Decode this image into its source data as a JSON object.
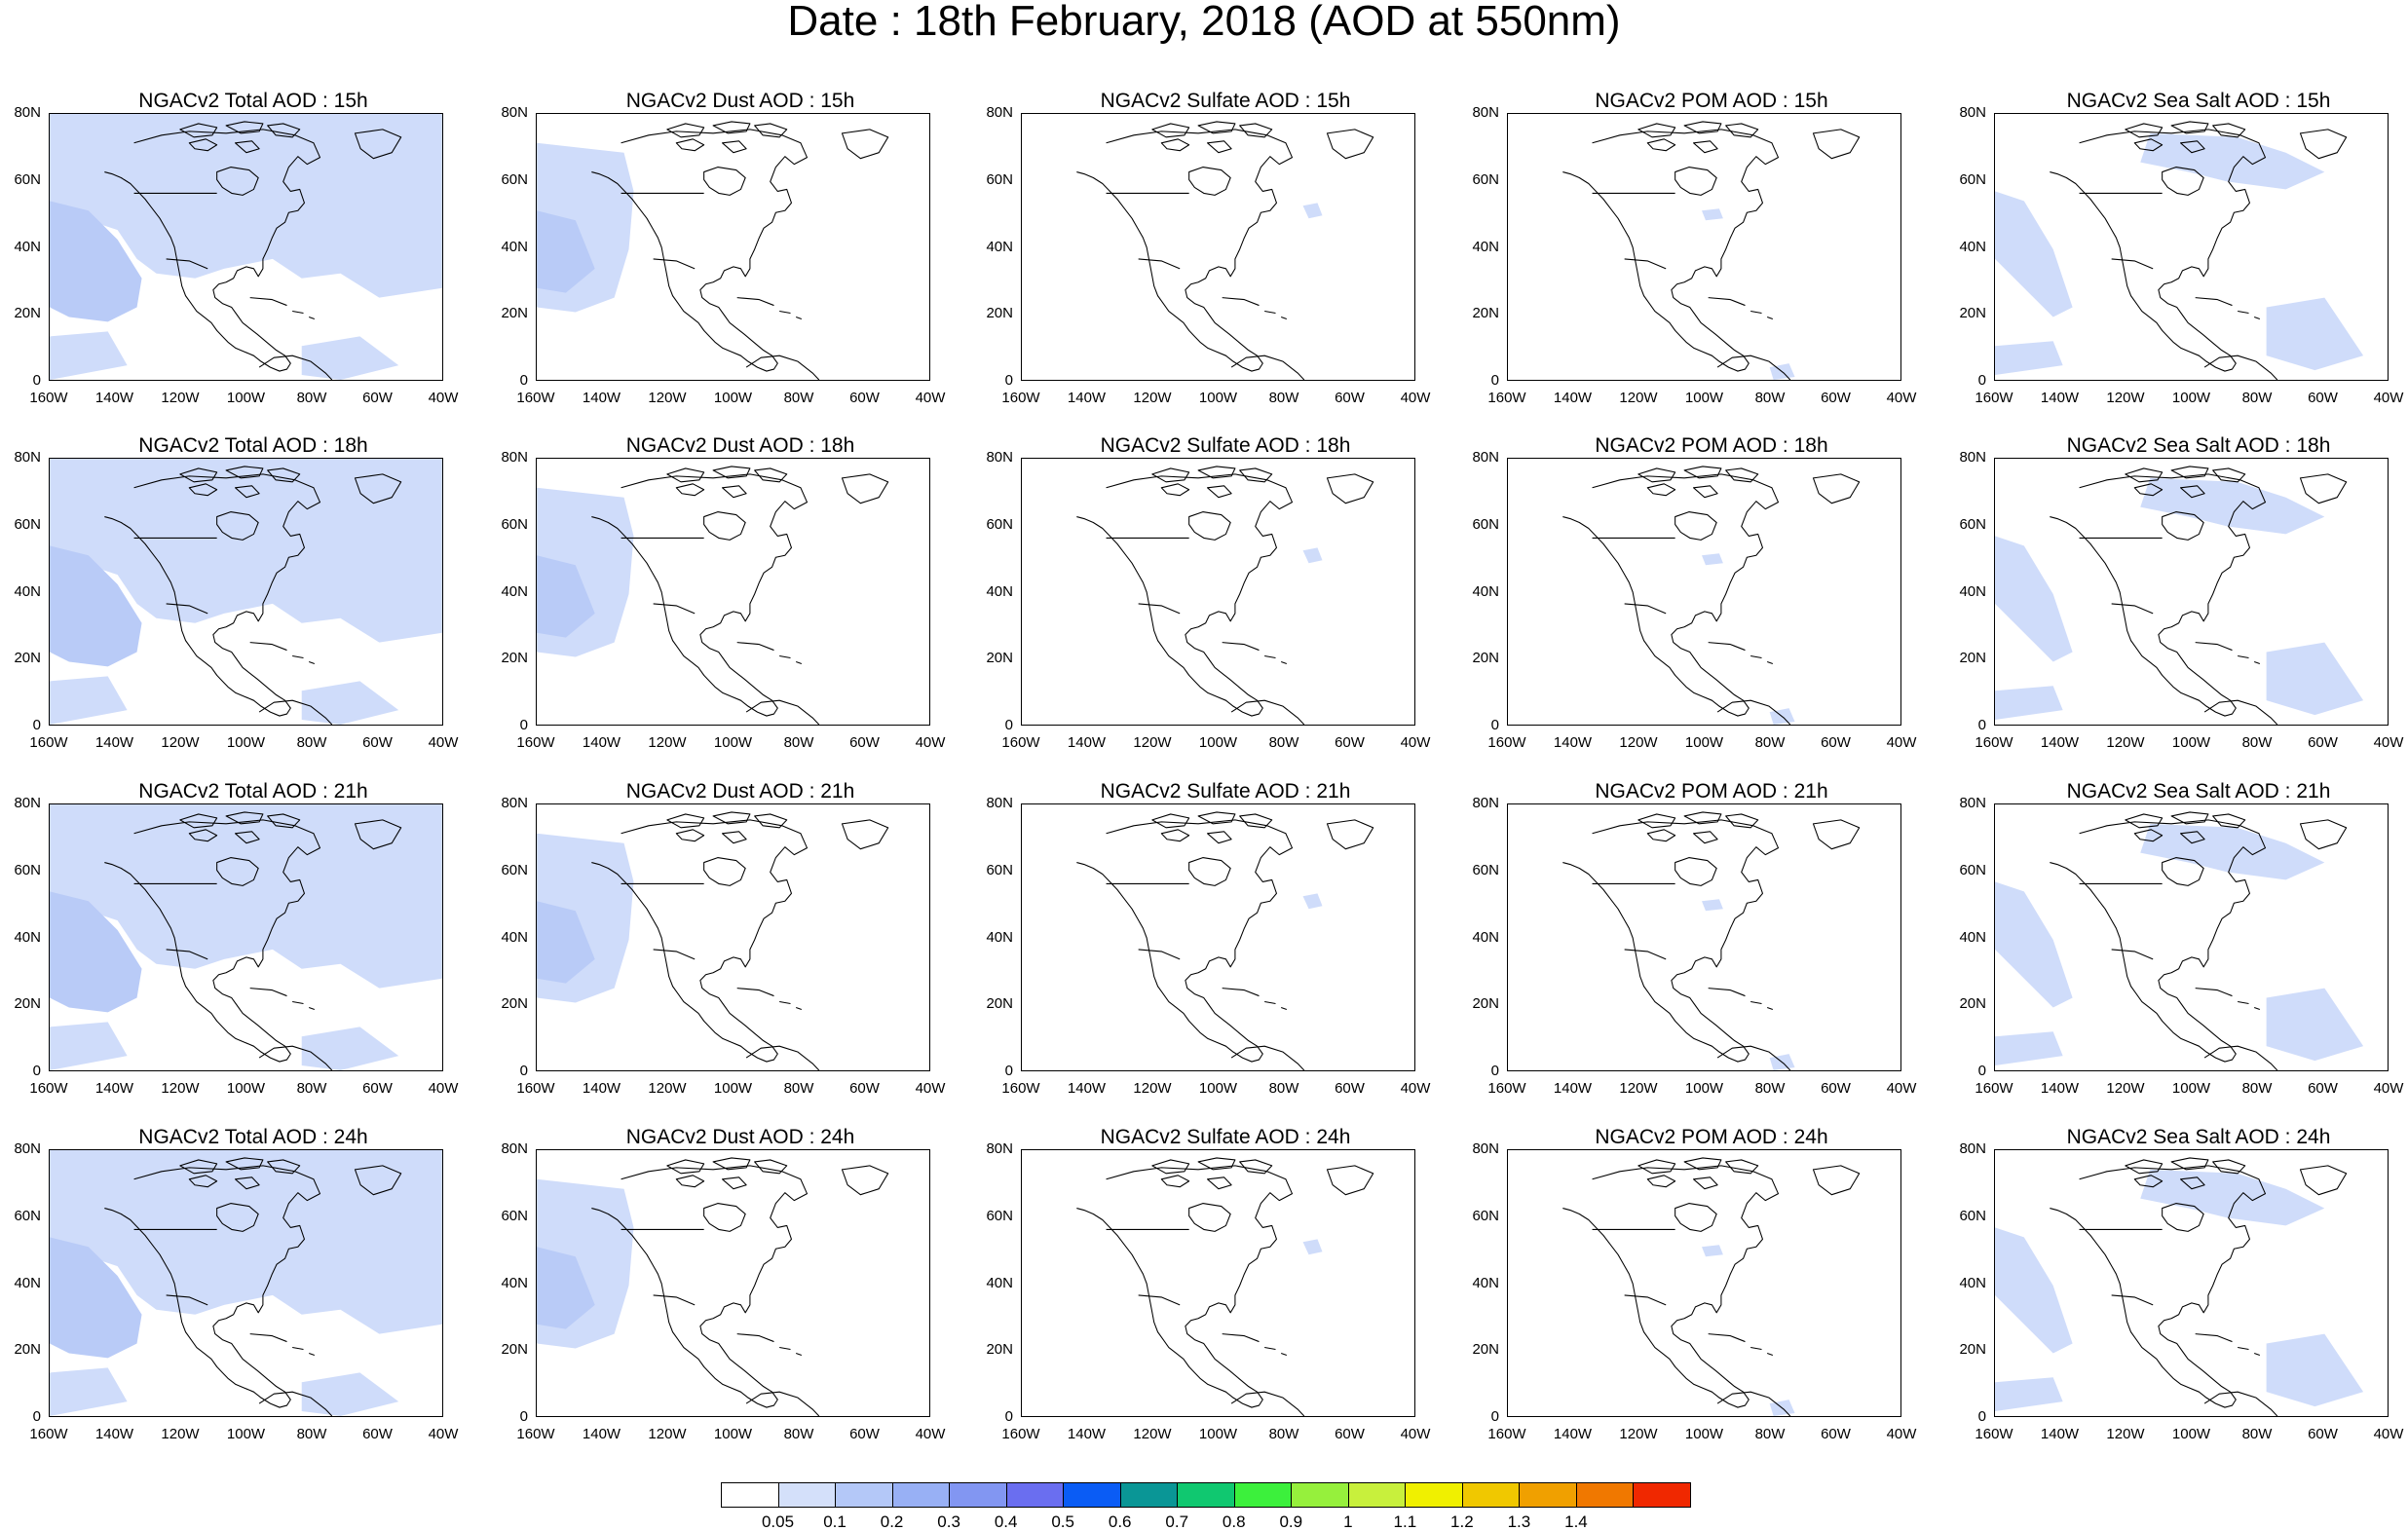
{
  "title": "Date : 18th February, 2018 (AOD at 550nm)",
  "map_axes": {
    "lat_labels": [
      "80N",
      "60N",
      "40N",
      "20N",
      "0"
    ],
    "lon_labels": [
      "160W",
      "140W",
      "120W",
      "100W",
      "80W",
      "60W",
      "40W"
    ]
  },
  "panels": [
    {
      "title": "NGACv2 Total AOD : 15h",
      "species": "total",
      "hour": "15h"
    },
    {
      "title": "NGACv2 Dust AOD : 15h",
      "species": "dust",
      "hour": "15h"
    },
    {
      "title": "NGACv2 Sulfate AOD : 15h",
      "species": "sulfate",
      "hour": "15h"
    },
    {
      "title": "NGACv2 POM AOD : 15h",
      "species": "pom",
      "hour": "15h"
    },
    {
      "title": "NGACv2 Sea Salt AOD : 15h",
      "species": "seasalt",
      "hour": "15h"
    },
    {
      "title": "NGACv2 Total AOD : 18h",
      "species": "total",
      "hour": "18h"
    },
    {
      "title": "NGACv2 Dust AOD : 18h",
      "species": "dust",
      "hour": "18h"
    },
    {
      "title": "NGACv2 Sulfate AOD : 18h",
      "species": "sulfate",
      "hour": "18h"
    },
    {
      "title": "NGACv2 POM AOD : 18h",
      "species": "pom",
      "hour": "18h"
    },
    {
      "title": "NGACv2 Sea Salt AOD : 18h",
      "species": "seasalt",
      "hour": "18h"
    },
    {
      "title": "NGACv2 Total AOD : 21h",
      "species": "total",
      "hour": "21h"
    },
    {
      "title": "NGACv2 Dust AOD : 21h",
      "species": "dust",
      "hour": "21h"
    },
    {
      "title": "NGACv2 Sulfate AOD : 21h",
      "species": "sulfate",
      "hour": "21h"
    },
    {
      "title": "NGACv2 POM AOD : 21h",
      "species": "pom",
      "hour": "21h"
    },
    {
      "title": "NGACv2 Sea Salt AOD : 21h",
      "species": "seasalt",
      "hour": "21h"
    },
    {
      "title": "NGACv2 Total AOD : 24h",
      "species": "total",
      "hour": "24h"
    },
    {
      "title": "NGACv2 Dust AOD : 24h",
      "species": "dust",
      "hour": "24h"
    },
    {
      "title": "NGACv2 Sulfate AOD : 24h",
      "species": "sulfate",
      "hour": "24h"
    },
    {
      "title": "NGACv2 POM AOD : 24h",
      "species": "pom",
      "hour": "24h"
    },
    {
      "title": "NGACv2 Sea Salt  AOD : 24h",
      "species": "seasalt",
      "hour": "24h"
    }
  ],
  "colorbar": {
    "labels": [
      "0.05",
      "0.1",
      "0.2",
      "0.3",
      "0.4",
      "0.5",
      "0.6",
      "0.7",
      "0.8",
      "0.9",
      "1",
      "1.1",
      "1.2",
      "1.3",
      "1.4"
    ],
    "colors": [
      "#ffffff",
      "#d4e0fa",
      "#b4c8f8",
      "#98b0f5",
      "#8296f2",
      "#6a6ef0",
      "#0a5cf5",
      "#0a9696",
      "#10c870",
      "#3cf03c",
      "#96f03c",
      "#c8f03c",
      "#f0f000",
      "#f0c800",
      "#f0a000",
      "#f07800",
      "#f02800"
    ]
  },
  "shade_colors": {
    "light": "#cfdcfa",
    "medium": "#b9cbf7"
  }
}
